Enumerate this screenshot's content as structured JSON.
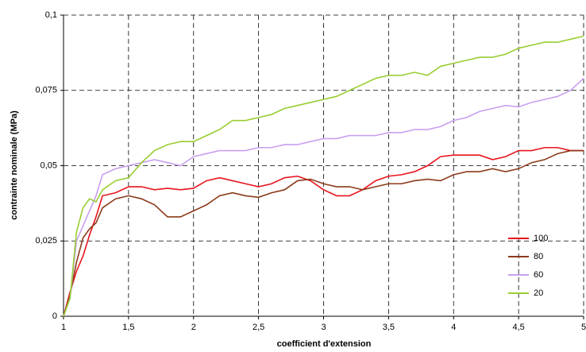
{
  "chart_data": {
    "type": "line",
    "x_label": "coefficient d'extension",
    "y_label": "contrainte nominale (MPa)",
    "x": [
      1,
      1.05,
      1.1,
      1.15,
      1.2,
      1.25,
      1.3,
      1.4,
      1.5,
      1.6,
      1.7,
      1.8,
      1.9,
      2.0,
      2.1,
      2.2,
      2.3,
      2.4,
      2.5,
      2.6,
      2.7,
      2.8,
      2.9,
      3.0,
      3.1,
      3.2,
      3.3,
      3.4,
      3.5,
      3.6,
      3.7,
      3.8,
      3.9,
      4.0,
      4.1,
      4.2,
      4.3,
      4.4,
      4.5,
      4.6,
      4.7,
      4.8,
      4.9,
      5.0
    ],
    "series": [
      {
        "name": "100",
        "color": "#e8141c",
        "values": [
          0,
          0.008,
          0.015,
          0.02,
          0.027,
          0.033,
          0.04,
          0.041,
          0.043,
          0.043,
          0.042,
          0.0425,
          0.042,
          0.0425,
          0.045,
          0.046,
          0.045,
          0.044,
          0.043,
          0.044,
          0.046,
          0.0465,
          0.045,
          0.042,
          0.04,
          0.04,
          0.042,
          0.045,
          0.0465,
          0.047,
          0.048,
          0.05,
          0.053,
          0.0535,
          0.0535,
          0.0535,
          0.052,
          0.053,
          0.055,
          0.055,
          0.056,
          0.056,
          0.055,
          0.055
        ]
      },
      {
        "name": "80",
        "color": "#8b3a1a",
        "values": [
          0,
          0.007,
          0.018,
          0.026,
          0.029,
          0.031,
          0.036,
          0.039,
          0.04,
          0.039,
          0.037,
          0.033,
          0.033,
          0.035,
          0.037,
          0.04,
          0.041,
          0.04,
          0.0395,
          0.041,
          0.042,
          0.045,
          0.0455,
          0.044,
          0.043,
          0.043,
          0.042,
          0.043,
          0.044,
          0.044,
          0.045,
          0.0455,
          0.045,
          0.047,
          0.048,
          0.048,
          0.049,
          0.048,
          0.049,
          0.051,
          0.052,
          0.054,
          0.055,
          0.055
        ]
      },
      {
        "name": "60",
        "color": "#c8a0f0",
        "values": [
          0,
          0.006,
          0.025,
          0.03,
          0.035,
          0.04,
          0.047,
          0.049,
          0.05,
          0.051,
          0.052,
          0.051,
          0.05,
          0.053,
          0.054,
          0.055,
          0.055,
          0.055,
          0.056,
          0.056,
          0.057,
          0.057,
          0.058,
          0.059,
          0.059,
          0.06,
          0.06,
          0.06,
          0.061,
          0.061,
          0.062,
          0.062,
          0.063,
          0.065,
          0.066,
          0.068,
          0.069,
          0.07,
          0.0695,
          0.071,
          0.072,
          0.073,
          0.075,
          0.079
        ]
      },
      {
        "name": "20",
        "color": "#9acd32",
        "values": [
          0,
          0.006,
          0.028,
          0.036,
          0.039,
          0.038,
          0.042,
          0.045,
          0.046,
          0.051,
          0.055,
          0.057,
          0.058,
          0.058,
          0.06,
          0.062,
          0.065,
          0.065,
          0.066,
          0.067,
          0.069,
          0.07,
          0.071,
          0.072,
          0.073,
          0.075,
          0.077,
          0.079,
          0.08,
          0.08,
          0.081,
          0.08,
          0.083,
          0.084,
          0.085,
          0.086,
          0.086,
          0.087,
          0.089,
          0.09,
          0.091,
          0.091,
          0.092,
          0.093
        ]
      }
    ],
    "xlim": [
      1,
      5
    ],
    "xticks": [
      1,
      {
        "value": 1.5,
        "label": "1,5"
      },
      2,
      {
        "value": 2.5,
        "label": "2,5"
      },
      3,
      {
        "value": 3.5,
        "label": "3,5"
      },
      4,
      {
        "value": 4.5,
        "label": "4,5"
      },
      5
    ],
    "ylim": [
      0,
      0.1
    ],
    "yticks": [
      0,
      {
        "value": 0.025,
        "label": "0,025"
      },
      {
        "value": 0.05,
        "label": "0,05"
      },
      {
        "value": 0.075,
        "label": "0,075"
      },
      {
        "value": 0.1,
        "label": "0,1"
      }
    ],
    "grid": true,
    "legend": "right"
  }
}
